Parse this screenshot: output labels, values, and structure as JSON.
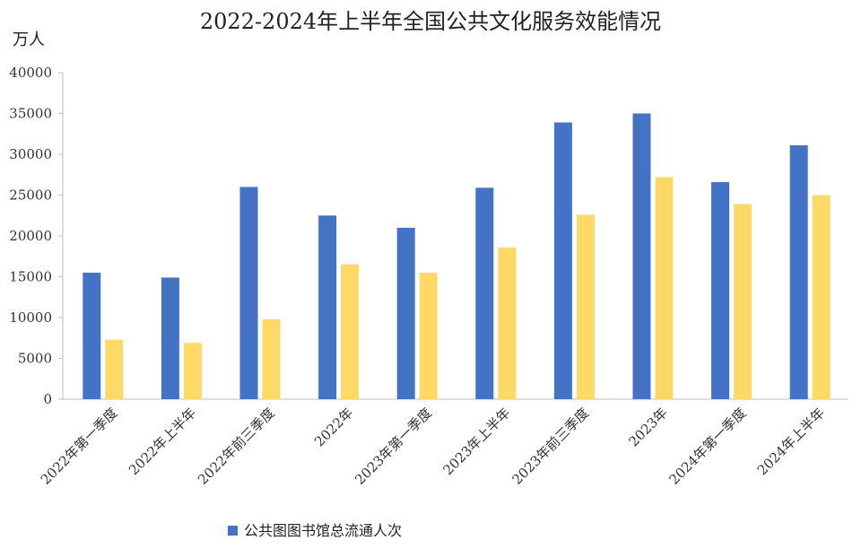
{
  "chart_data": {
    "type": "bar",
    "title": "2022-2024年上半年全国公共文化服务效能情况",
    "ylabel": "万人",
    "xlabel": "",
    "ylim": [
      0,
      40000
    ],
    "yticks": [
      0,
      5000,
      10000,
      15000,
      20000,
      25000,
      30000,
      35000,
      40000
    ],
    "categories": [
      "2022年第一季度",
      "2022年上半年",
      "2022年前三季度",
      "2022年",
      "2023年第一季度",
      "2023年上半年",
      "2023年前三季度",
      "2023年",
      "2024年第一季度",
      "2024年上半年"
    ],
    "series": [
      {
        "name": "公共图图书馆总流通人次",
        "color": "#4472C4",
        "values": [
          15500,
          14900,
          26000,
          22500,
          21000,
          25900,
          33900,
          35000,
          26600,
          31100
        ]
      },
      {
        "name": "",
        "color": "#FFD966",
        "values": [
          7300,
          6900,
          9800,
          16500,
          15500,
          18600,
          22600,
          27200,
          23900,
          25000
        ]
      }
    ],
    "legend_position": "bottom-left",
    "grid": false
  }
}
